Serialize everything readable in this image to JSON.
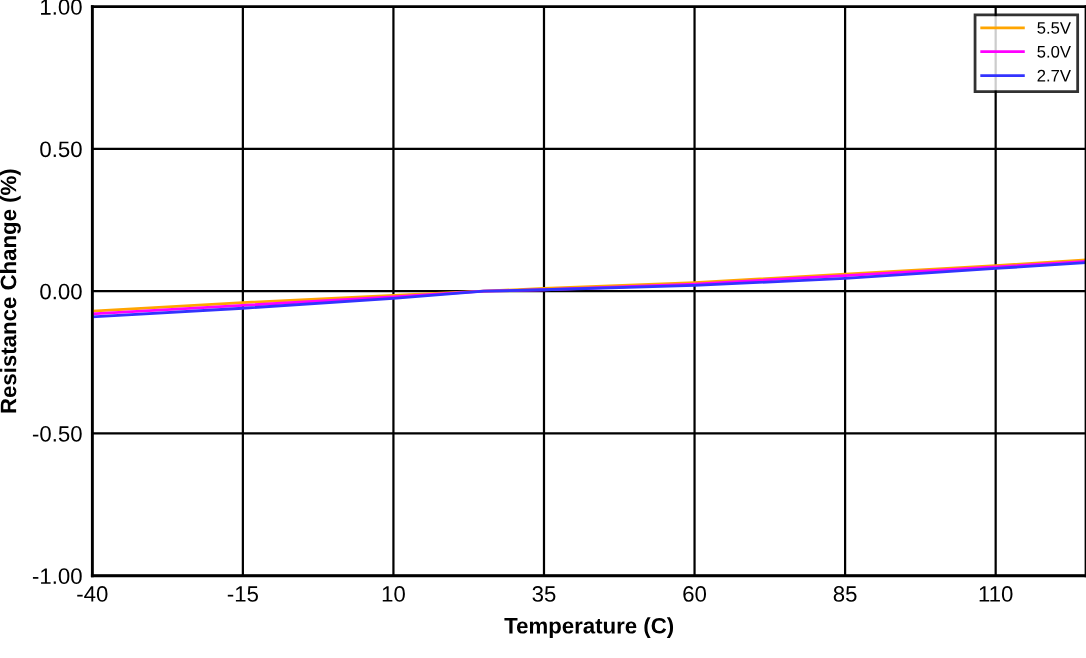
{
  "chart_data": {
    "type": "line",
    "xlabel": "Temperature (C)",
    "ylabel": "Resistance Change (%)",
    "x": [
      -40,
      -15,
      10,
      25,
      35,
      60,
      85,
      110,
      125
    ],
    "series": [
      {
        "name": "5.5V",
        "color": "#ffa500",
        "values": [
          -0.07,
          -0.04,
          -0.015,
          0.0,
          0.01,
          0.03,
          0.06,
          0.09,
          0.11
        ]
      },
      {
        "name": "5.0V",
        "color": "#ff00ff",
        "values": [
          -0.08,
          -0.05,
          -0.02,
          0.0,
          0.005,
          0.025,
          0.055,
          0.085,
          0.105
        ]
      },
      {
        "name": "2.7V",
        "color": "#3333ff",
        "values": [
          -0.09,
          -0.06,
          -0.025,
          0.0,
          0.005,
          0.02,
          0.045,
          0.08,
          0.1
        ]
      }
    ],
    "xlim": [
      -40,
      125
    ],
    "xticks": [
      -40,
      -15,
      10,
      35,
      60,
      85,
      110
    ],
    "ylim": [
      -1.0,
      1.0
    ],
    "yticks": [
      {
        "value": -1.0,
        "label": "-1.00"
      },
      {
        "value": -0.5,
        "label": "-0.50"
      },
      {
        "value": 0.0,
        "label": "0.00"
      },
      {
        "value": 0.5,
        "label": "0.50"
      },
      {
        "value": 1.0,
        "label": "1.00"
      }
    ],
    "grid": true,
    "legend": "top right",
    "marker": "none",
    "line_style": "solid"
  }
}
